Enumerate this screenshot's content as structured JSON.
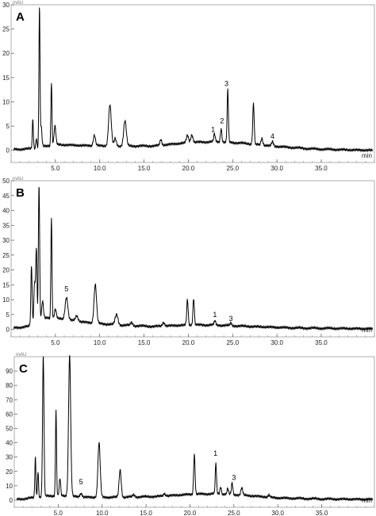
{
  "figure": {
    "background": "#ffffff",
    "line_color": "#000000",
    "panel_border_color": "#9a9a9a"
  },
  "chart_data": [
    {
      "type": "line",
      "panel_label": "A",
      "y_unit_label": "mAU",
      "x_unit_label": "min",
      "xlim": [
        0,
        41
      ],
      "ylim": [
        -2.5,
        30
      ],
      "y_ticks": [
        0,
        5,
        10,
        15,
        20,
        25,
        30
      ],
      "x_ticks": [
        5.0,
        10.0,
        15.0,
        20.0,
        25.0,
        30.0,
        35.0
      ],
      "x_tick_labels": [
        "5.0",
        "10.0",
        "15.0",
        "20.0",
        "25.0",
        "30.0",
        "35.0"
      ],
      "grid": false,
      "baseline": [
        [
          0.3,
          0.2
        ],
        [
          2,
          0.3
        ],
        [
          5,
          1.2
        ],
        [
          8,
          1.0
        ],
        [
          12,
          0.9
        ],
        [
          16,
          0.9
        ],
        [
          20,
          1.6
        ],
        [
          23,
          1.8
        ],
        [
          26,
          1.5
        ],
        [
          30,
          0.8
        ],
        [
          34,
          0.3
        ],
        [
          38,
          0.1
        ],
        [
          41,
          0.0
        ]
      ],
      "peaks": [
        {
          "rt": 2.45,
          "height": 6,
          "width": 0.06
        },
        {
          "rt": 2.85,
          "height": 2,
          "width": 0.06
        },
        {
          "rt": 3.2,
          "height": 29,
          "width": 0.06
        },
        {
          "rt": 3.4,
          "height": 4,
          "width": 0.08
        },
        {
          "rt": 4.55,
          "height": 13,
          "width": 0.06
        },
        {
          "rt": 4.95,
          "height": 3.8,
          "width": 0.1
        },
        {
          "rt": 9.4,
          "height": 2.2,
          "width": 0.12
        },
        {
          "rt": 11.15,
          "height": 8.5,
          "width": 0.15
        },
        {
          "rt": 11.75,
          "height": 1.5,
          "width": 0.12
        },
        {
          "rt": 12.85,
          "height": 5.2,
          "width": 0.15
        },
        {
          "rt": 16.9,
          "height": 1.2,
          "width": 0.1
        },
        {
          "rt": 19.9,
          "height": 1.5,
          "width": 0.12
        },
        {
          "rt": 20.4,
          "height": 1.6,
          "width": 0.12
        },
        {
          "rt": 22.95,
          "height": 1.6,
          "width": 0.08
        },
        {
          "rt": 23.7,
          "height": 2.8,
          "width": 0.08
        },
        {
          "rt": 24.45,
          "height": 10.8,
          "width": 0.07
        },
        {
          "rt": 27.35,
          "height": 8.4,
          "width": 0.08
        },
        {
          "rt": 28.3,
          "height": 1.4,
          "width": 0.1
        },
        {
          "rt": 29.5,
          "height": 0.9,
          "width": 0.1
        }
      ],
      "annotations": [
        {
          "text": "1",
          "rt": 22.8,
          "y": 3.8
        },
        {
          "text": "2",
          "rt": 23.8,
          "y": 5.6
        },
        {
          "text": "3",
          "rt": 24.3,
          "y": 13.3
        },
        {
          "text": "4",
          "rt": 29.5,
          "y": 2.4
        }
      ]
    },
    {
      "type": "line",
      "panel_label": "B",
      "y_unit_label": "mAU",
      "x_unit_label": "min",
      "xlim": [
        0,
        41
      ],
      "ylim": [
        -2.5,
        50
      ],
      "y_ticks": [
        0,
        5,
        10,
        15,
        20,
        25,
        30,
        35,
        40,
        45,
        50
      ],
      "x_ticks": [
        5.0,
        10.0,
        15.0,
        20.0,
        25.0,
        30.0,
        35.0
      ],
      "x_tick_labels": [
        "5.0",
        "10.0",
        "15.0",
        "20.0",
        "25.0",
        "30.0",
        "35.0"
      ],
      "grid": false,
      "baseline": [
        [
          0.3,
          0.5
        ],
        [
          2,
          1.0
        ],
        [
          4,
          4.0
        ],
        [
          6,
          3.5
        ],
        [
          8,
          2.5
        ],
        [
          12,
          1.5
        ],
        [
          16,
          1.0
        ],
        [
          20,
          1.5
        ],
        [
          23,
          1.5
        ],
        [
          27,
          1.0
        ],
        [
          32,
          0.5
        ],
        [
          41,
          0.2
        ]
      ],
      "peaks": [
        {
          "rt": 2.3,
          "height": 20,
          "width": 0.07
        },
        {
          "rt": 2.65,
          "height": 14,
          "width": 0.08
        },
        {
          "rt": 2.85,
          "height": 25,
          "width": 0.07
        },
        {
          "rt": 3.15,
          "height": 46,
          "width": 0.07
        },
        {
          "rt": 3.55,
          "height": 6,
          "width": 0.1
        },
        {
          "rt": 4.55,
          "height": 34,
          "width": 0.06
        },
        {
          "rt": 5.0,
          "height": 3,
          "width": 0.1
        },
        {
          "rt": 6.25,
          "height": 7.5,
          "width": 0.15
        },
        {
          "rt": 7.4,
          "height": 1.8,
          "width": 0.15
        },
        {
          "rt": 9.5,
          "height": 13,
          "width": 0.14
        },
        {
          "rt": 11.9,
          "height": 3.5,
          "width": 0.16
        },
        {
          "rt": 13.6,
          "height": 1,
          "width": 0.12
        },
        {
          "rt": 17.2,
          "height": 1.2,
          "width": 0.12
        },
        {
          "rt": 19.9,
          "height": 8.5,
          "width": 0.08
        },
        {
          "rt": 20.6,
          "height": 9,
          "width": 0.08
        },
        {
          "rt": 23.0,
          "height": 1.4,
          "width": 0.08
        },
        {
          "rt": 24.8,
          "height": 0.9,
          "width": 0.08
        }
      ],
      "annotations": [
        {
          "text": "5",
          "rt": 6.25,
          "y": 12.8
        },
        {
          "text": "1",
          "rt": 23.0,
          "y": 4.2
        },
        {
          "text": "3",
          "rt": 24.8,
          "y": 2.8
        }
      ]
    },
    {
      "type": "line",
      "panel_label": "C",
      "y_unit_label": "mAU",
      "x_unit_label": "min",
      "xlim": [
        0,
        41
      ],
      "ylim": [
        -5,
        100
      ],
      "y_ticks": [
        0,
        10,
        20,
        30,
        40,
        50,
        60,
        70,
        80,
        90
      ],
      "x_ticks": [
        5.0,
        10.0,
        15.0,
        20.0,
        25.0,
        30.0,
        35.0
      ],
      "x_tick_labels": [
        "5.0",
        "10.0",
        "15.0",
        "20.0",
        "25.0",
        "30.0",
        "35.0"
      ],
      "grid": false,
      "baseline": [
        [
          0.3,
          0.5
        ],
        [
          2,
          1.5
        ],
        [
          4,
          3.0
        ],
        [
          6,
          3.0
        ],
        [
          8,
          2.0
        ],
        [
          12,
          2.0
        ],
        [
          16,
          2.5
        ],
        [
          20,
          4.0
        ],
        [
          23,
          4.5
        ],
        [
          26,
          3.5
        ],
        [
          30,
          1.5
        ],
        [
          35,
          0.8
        ],
        [
          41,
          0.5
        ]
      ],
      "peaks": [
        {
          "rt": 2.4,
          "height": 28,
          "width": 0.06
        },
        {
          "rt": 2.7,
          "height": 18,
          "width": 0.06
        },
        {
          "rt": 3.3,
          "height": 98,
          "width": 0.08
        },
        {
          "rt": 4.75,
          "height": 60,
          "width": 0.06
        },
        {
          "rt": 5.2,
          "height": 12,
          "width": 0.08
        },
        {
          "rt": 6.3,
          "height": 98,
          "width": 0.12
        },
        {
          "rt": 7.6,
          "height": 2.5,
          "width": 0.12
        },
        {
          "rt": 9.65,
          "height": 38,
          "width": 0.13
        },
        {
          "rt": 12.05,
          "height": 19,
          "width": 0.12
        },
        {
          "rt": 13.6,
          "height": 1.5,
          "width": 0.12
        },
        {
          "rt": 17.1,
          "height": 1.5,
          "width": 0.12
        },
        {
          "rt": 20.5,
          "height": 28,
          "width": 0.08
        },
        {
          "rt": 22.95,
          "height": 21,
          "width": 0.07
        },
        {
          "rt": 23.5,
          "height": 5,
          "width": 0.08
        },
        {
          "rt": 24.3,
          "height": 4,
          "width": 0.08
        },
        {
          "rt": 24.8,
          "height": 8,
          "width": 0.08
        },
        {
          "rt": 25.9,
          "height": 5,
          "width": 0.1
        },
        {
          "rt": 29.0,
          "height": 1.5,
          "width": 0.1
        }
      ],
      "annotations": [
        {
          "text": "5",
          "rt": 7.6,
          "y": 11
        },
        {
          "text": "1",
          "rt": 22.9,
          "y": 31
        },
        {
          "text": "3",
          "rt": 25.0,
          "y": 14
        }
      ]
    }
  ]
}
